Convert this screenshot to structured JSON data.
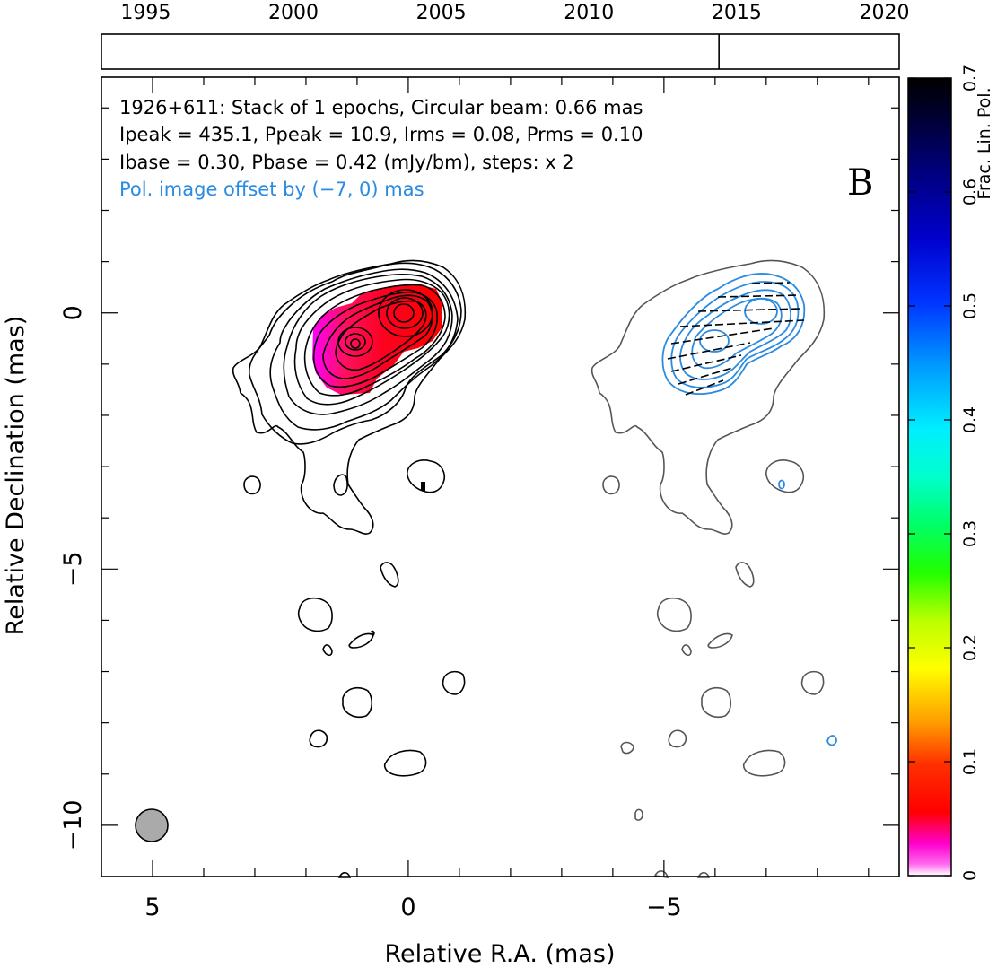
{
  "chart_data": {
    "type": "contour",
    "annotations": {
      "line1": "1926+611: Stack of 1 epochs, Circular beam: 0.66 mas",
      "line2": "Ipeak = 435.1, Ppeak = 10.9, Irms = 0.08, Prms = 0.10",
      "line3": "Ibase = 0.30, Pbase = 0.42 (mJy/bm), steps: x 2",
      "line4": "Pol. image offset by (−7, 0) mas",
      "panel_letter": "B"
    },
    "xlabel": "Relative R.A. (mas)",
    "ylabel": "Relative Declination (mas)",
    "colorbar_label": "Frac. Lin. Pol.",
    "x_ticks": [
      "5",
      "0",
      "−5"
    ],
    "y_ticks": [
      "0",
      "−5",
      "−10"
    ],
    "colorbar_ticks": [
      "0",
      "0.1",
      "0.2",
      "0.3",
      "0.4",
      "0.5",
      "0.6",
      "0.7"
    ],
    "xlim": [
      6,
      -9.6
    ],
    "ylim": [
      -11,
      4.6
    ],
    "colorbar_range": [
      0,
      0.7
    ],
    "timeline": {
      "years": [
        "1995",
        "2000",
        "2005",
        "2010",
        "2015",
        "2020"
      ],
      "year_range": [
        1993.5,
        2020.5
      ],
      "epochs": [
        2014.4
      ]
    },
    "beam_diameter_mas": 0.66,
    "pol_offset_mas": [
      -7,
      0
    ]
  }
}
